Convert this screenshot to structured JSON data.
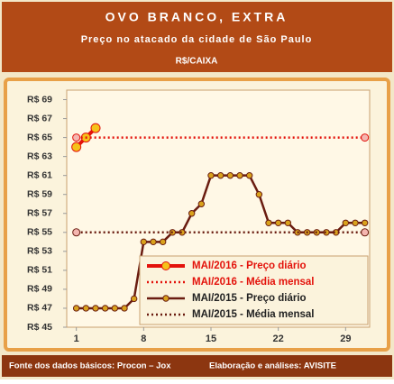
{
  "chart_data": {
    "type": "line",
    "title": "OVO BRANCO, EXTRA",
    "subtitle": "Preço no atacado da cidade de São Paulo",
    "unit": "R$/CAIXA",
    "source": "Fonte dos dados básicos: Procon – Jox",
    "credit": "Elaboração e análises: AVISITE",
    "xlim": [
      0,
      31.5
    ],
    "xticks": [
      1,
      8,
      15,
      22,
      29
    ],
    "ylim": [
      45,
      70
    ],
    "yticks": [
      {
        "value": 45,
        "label": "R$ 45"
      },
      {
        "value": 47,
        "label": "R$ 47"
      },
      {
        "value": 49,
        "label": "R$ 49"
      },
      {
        "value": 51,
        "label": "R$ 51"
      },
      {
        "value": 53,
        "label": "R$ 53"
      },
      {
        "value": 55,
        "label": "R$ 55"
      },
      {
        "value": 57,
        "label": "R$ 57"
      },
      {
        "value": 59,
        "label": "R$ 59"
      },
      {
        "value": 61,
        "label": "R$ 61"
      },
      {
        "value": 63,
        "label": "R$ 63"
      },
      {
        "value": 65,
        "label": "R$ 65"
      },
      {
        "value": 67,
        "label": "R$ 67"
      },
      {
        "value": 69,
        "label": "R$ 69"
      }
    ],
    "legend": "lower right",
    "series": [
      {
        "name": "MAI/2016 - Preço diário",
        "color": "#e3120b",
        "marker": "#f5c21b",
        "dash": "solid",
        "x": [
          1,
          2,
          3
        ],
        "values": [
          64,
          65,
          66
        ]
      },
      {
        "name": "MAI/2016 - Média  mensal",
        "color": "#e3120b",
        "marker": "#f4b6b0",
        "dash": "dotted",
        "x": [
          1,
          31
        ],
        "values": [
          65,
          65
        ]
      },
      {
        "name": "MAI/2015 - Preço diário",
        "color": "#6a1c10",
        "marker": "#d9a21c",
        "dash": "solid",
        "x": [
          1,
          2,
          3,
          4,
          5,
          6,
          7,
          8,
          9,
          10,
          11,
          12,
          13,
          14,
          15,
          16,
          17,
          18,
          19,
          20,
          21,
          22,
          23,
          24,
          25,
          26,
          27,
          28,
          29,
          30,
          31
        ],
        "values": [
          47,
          47,
          47,
          47,
          47,
          47,
          48,
          54,
          54,
          54,
          55,
          55,
          57,
          58,
          61,
          61,
          61,
          61,
          61,
          59,
          56,
          56,
          56,
          55,
          55,
          55,
          55,
          55,
          56,
          56,
          56
        ]
      },
      {
        "name": "MAI/2015 - Média  mensal",
        "color": "#6a1c10",
        "marker": "#f4b6b0",
        "dash": "dotted",
        "x": [
          1,
          31
        ],
        "values": [
          55,
          55
        ]
      }
    ]
  }
}
